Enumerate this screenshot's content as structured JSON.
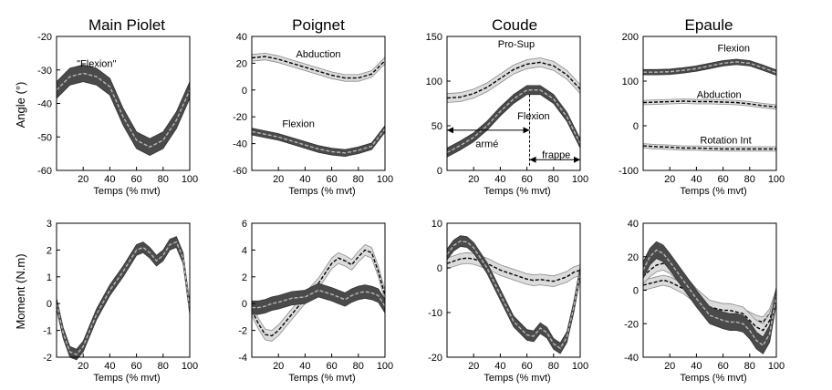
{
  "figure": {
    "titles": [
      "Main Piolet",
      "Poignet",
      "Coude",
      "Epaule"
    ],
    "row_labels": [
      "Angle (°)",
      "Moment (N.m)"
    ]
  },
  "chart_data": [
    {
      "type": "line",
      "title": "Main Piolet",
      "xlabel": "Temps (% mvt)",
      "ylabel": "Angle (°)",
      "xlim": [
        0,
        100
      ],
      "ylim": [
        -60,
        -20
      ],
      "x_ticks": [
        20,
        40,
        60,
        80,
        100
      ],
      "y_ticks": [
        -60,
        -50,
        -40,
        -30,
        -20
      ],
      "x": [
        0,
        10,
        20,
        30,
        40,
        50,
        60,
        70,
        80,
        90,
        100
      ],
      "series": [
        {
          "name": "\"Flexion\"",
          "values": [
            -36,
            -32,
            -31,
            -32,
            -35,
            -44,
            -51,
            -53,
            -51,
            -45,
            -36
          ],
          "band": 2.5,
          "style": "dark"
        }
      ],
      "annotations": [
        {
          "text": "\"Flexion\"",
          "x": 30,
          "y": -28
        }
      ]
    },
    {
      "type": "line",
      "title": "Poignet",
      "xlabel": "Temps (% mvt)",
      "ylabel": "",
      "xlim": [
        0,
        100
      ],
      "ylim": [
        -60,
        40
      ],
      "x_ticks": [
        20,
        40,
        60,
        80,
        100
      ],
      "y_ticks": [
        -60,
        -40,
        -20,
        0,
        20,
        40
      ],
      "x": [
        0,
        10,
        20,
        30,
        40,
        50,
        60,
        70,
        80,
        90,
        100
      ],
      "series": [
        {
          "name": "Abduction",
          "values": [
            24,
            25,
            23,
            20,
            17,
            14,
            11,
            9,
            9,
            12,
            22
          ],
          "band": 2.5,
          "style": "light"
        },
        {
          "name": "Flexion",
          "values": [
            -31,
            -33,
            -35,
            -38,
            -41,
            -44,
            -46,
            -47,
            -45,
            -42,
            -29
          ],
          "band": 2.5,
          "style": "dark"
        }
      ],
      "annotations": [
        {
          "text": "Abduction",
          "x": 50,
          "y": 27
        },
        {
          "text": "Flexion",
          "x": 35,
          "y": -25
        }
      ]
    },
    {
      "type": "line",
      "title": "Coude",
      "xlabel": "Temps (% mvt)",
      "ylabel": "",
      "xlim": [
        0,
        100
      ],
      "ylim": [
        0,
        150
      ],
      "x_ticks": [
        20,
        40,
        60,
        80,
        100
      ],
      "y_ticks": [
        0,
        50,
        100,
        150
      ],
      "x": [
        0,
        10,
        20,
        30,
        40,
        50,
        60,
        70,
        80,
        90,
        100
      ],
      "series": [
        {
          "name": "Pro-Sup",
          "values": [
            81,
            82,
            86,
            93,
            103,
            113,
            119,
            121,
            117,
            107,
            91
          ],
          "band": 5,
          "style": "light"
        },
        {
          "name": "Flexion",
          "values": [
            20,
            28,
            37,
            50,
            66,
            80,
            90,
            90,
            80,
            60,
            30
          ],
          "band": 5,
          "style": "dark"
        }
      ],
      "annotations": [
        {
          "text": "Pro-Sup",
          "x": 52,
          "y": 142
        },
        {
          "text": "Flexion",
          "x": 65,
          "y": 61
        },
        {
          "text": "armé",
          "x": 30,
          "y": 30
        },
        {
          "text": "frappe",
          "x": 82,
          "y": 18
        }
      ],
      "arrows": [
        {
          "from": 0,
          "to": 62,
          "y": 45
        },
        {
          "from": 62,
          "to": 100,
          "y": 12
        }
      ],
      "marker_x": 62
    },
    {
      "type": "line",
      "title": "Epaule",
      "xlabel": "Temps (% mvt)",
      "ylabel": "",
      "xlim": [
        0,
        100
      ],
      "ylim": [
        -100,
        200
      ],
      "x_ticks": [
        20,
        40,
        60,
        80,
        100
      ],
      "y_ticks": [
        -100,
        0,
        100,
        200
      ],
      "x": [
        0,
        10,
        20,
        30,
        40,
        50,
        60,
        70,
        80,
        90,
        100
      ],
      "series": [
        {
          "name": "Flexion",
          "values": [
            120,
            120,
            121,
            124,
            128,
            134,
            140,
            143,
            140,
            130,
            119
          ],
          "band": 6,
          "style": "dark"
        },
        {
          "name": "Abduction",
          "values": [
            52,
            53,
            54,
            55,
            54,
            54,
            53,
            52,
            49,
            45,
            42
          ],
          "band": 5,
          "style": "light"
        },
        {
          "name": "Rotation Int",
          "values": [
            -45,
            -47,
            -48,
            -50,
            -50,
            -51,
            -52,
            -52,
            -52,
            -52,
            -52
          ],
          "band": 5,
          "style": "light"
        }
      ],
      "annotations": [
        {
          "text": "Flexion",
          "x": 68,
          "y": 175
        },
        {
          "text": "Abduction",
          "x": 57,
          "y": 70
        },
        {
          "text": "Rotation Int",
          "x": 62,
          "y": -32
        }
      ]
    },
    {
      "type": "line",
      "title": "",
      "xlabel": "Temps (% mvt)",
      "ylabel": "Moment (N.m)",
      "xlim": [
        0,
        100
      ],
      "ylim": [
        -2,
        3
      ],
      "x_ticks": [
        20,
        40,
        60,
        80,
        100
      ],
      "y_ticks": [
        -2,
        -1,
        0,
        1,
        2,
        3
      ],
      "x": [
        0,
        5,
        10,
        15,
        20,
        30,
        40,
        50,
        60,
        65,
        70,
        75,
        80,
        85,
        90,
        95,
        100
      ],
      "series": [
        {
          "name": "",
          "values": [
            0,
            -1.1,
            -1.8,
            -1.9,
            -1.6,
            -0.4,
            0.5,
            1.2,
            2.0,
            2.1,
            1.9,
            1.6,
            1.8,
            2.2,
            2.3,
            1.7,
            -0.2
          ],
          "band": 0.2,
          "style": "dark"
        }
      ]
    },
    {
      "type": "line",
      "title": "",
      "xlabel": "Temps (% mvt)",
      "ylabel": "",
      "xlim": [
        0,
        100
      ],
      "ylim": [
        -4,
        6
      ],
      "x_ticks": [
        20,
        40,
        60,
        80,
        100
      ],
      "y_ticks": [
        -4,
        -2,
        0,
        2,
        4,
        6
      ],
      "x": [
        0,
        5,
        10,
        15,
        20,
        30,
        40,
        50,
        60,
        65,
        70,
        75,
        80,
        85,
        90,
        95,
        100
      ],
      "series": [
        {
          "name": "",
          "values": [
            -0.5,
            -1.5,
            -2.3,
            -2.4,
            -2.0,
            -0.8,
            0.4,
            1.5,
            3.0,
            3.4,
            3.2,
            2.9,
            3.5,
            4.0,
            3.8,
            2.4,
            0.6
          ],
          "band": 0.4,
          "style": "light"
        },
        {
          "name": "",
          "values": [
            -0.3,
            -0.3,
            -0.2,
            0.0,
            0.1,
            0.4,
            0.5,
            1.0,
            0.7,
            0.5,
            0.3,
            0.6,
            0.8,
            0.9,
            0.8,
            0.6,
            -0.2
          ],
          "band": 0.5,
          "style": "dark"
        }
      ]
    },
    {
      "type": "line",
      "title": "",
      "xlabel": "Temps (% mvt)",
      "ylabel": "",
      "xlim": [
        0,
        100
      ],
      "ylim": [
        -20,
        10
      ],
      "x_ticks": [
        20,
        40,
        60,
        80,
        100
      ],
      "y_ticks": [
        -20,
        -10,
        0,
        10
      ],
      "x": [
        0,
        5,
        10,
        15,
        20,
        30,
        40,
        50,
        60,
        65,
        70,
        75,
        80,
        85,
        90,
        95,
        100
      ],
      "series": [
        {
          "name": "",
          "values": [
            1.0,
            1.5,
            2.0,
            2.2,
            2.0,
            1.0,
            -0.5,
            -1.5,
            -2.5,
            -2.8,
            -2.6,
            -2.8,
            -3.0,
            -2.5,
            -2.0,
            -1.0,
            -0.5
          ],
          "band": 1.2,
          "style": "light"
        },
        {
          "name": "",
          "values": [
            3.0,
            5.0,
            6.0,
            5.8,
            4.5,
            0.0,
            -6.0,
            -12.0,
            -15.0,
            -15.3,
            -13.5,
            -14.5,
            -17.0,
            -18.0,
            -15.5,
            -9.0,
            -1.0
          ],
          "band": 1.2,
          "style": "dark"
        }
      ]
    },
    {
      "type": "line",
      "title": "",
      "xlabel": "Temps (% mvt)",
      "ylabel": "",
      "xlim": [
        0,
        100
      ],
      "ylim": [
        -40,
        40
      ],
      "x_ticks": [
        20,
        40,
        60,
        80,
        100
      ],
      "y_ticks": [
        -40,
        -20,
        0,
        20,
        40
      ],
      "x": [
        0,
        5,
        10,
        15,
        20,
        30,
        40,
        50,
        60,
        65,
        70,
        75,
        80,
        85,
        90,
        95,
        100
      ],
      "series": [
        {
          "name": "",
          "values": [
            3,
            4,
            5,
            6,
            5,
            1,
            -5,
            -10,
            -12,
            -12,
            -13,
            -14,
            -16,
            -18,
            -19,
            -14,
            -2
          ],
          "band": 3,
          "style": "light"
        },
        {
          "name": "",
          "values": [
            8,
            12,
            15,
            16,
            14,
            6,
            -3,
            -10,
            -12,
            -12,
            -13,
            -14,
            -18,
            -22,
            -24,
            -18,
            -3
          ],
          "band": 4,
          "style": "light"
        },
        {
          "name": "",
          "values": [
            12,
            20,
            24,
            22,
            17,
            6,
            -5,
            -15,
            -18,
            -19,
            -19,
            -20,
            -24,
            -30,
            -33,
            -26,
            -3
          ],
          "band": 5,
          "style": "dark"
        }
      ]
    }
  ]
}
